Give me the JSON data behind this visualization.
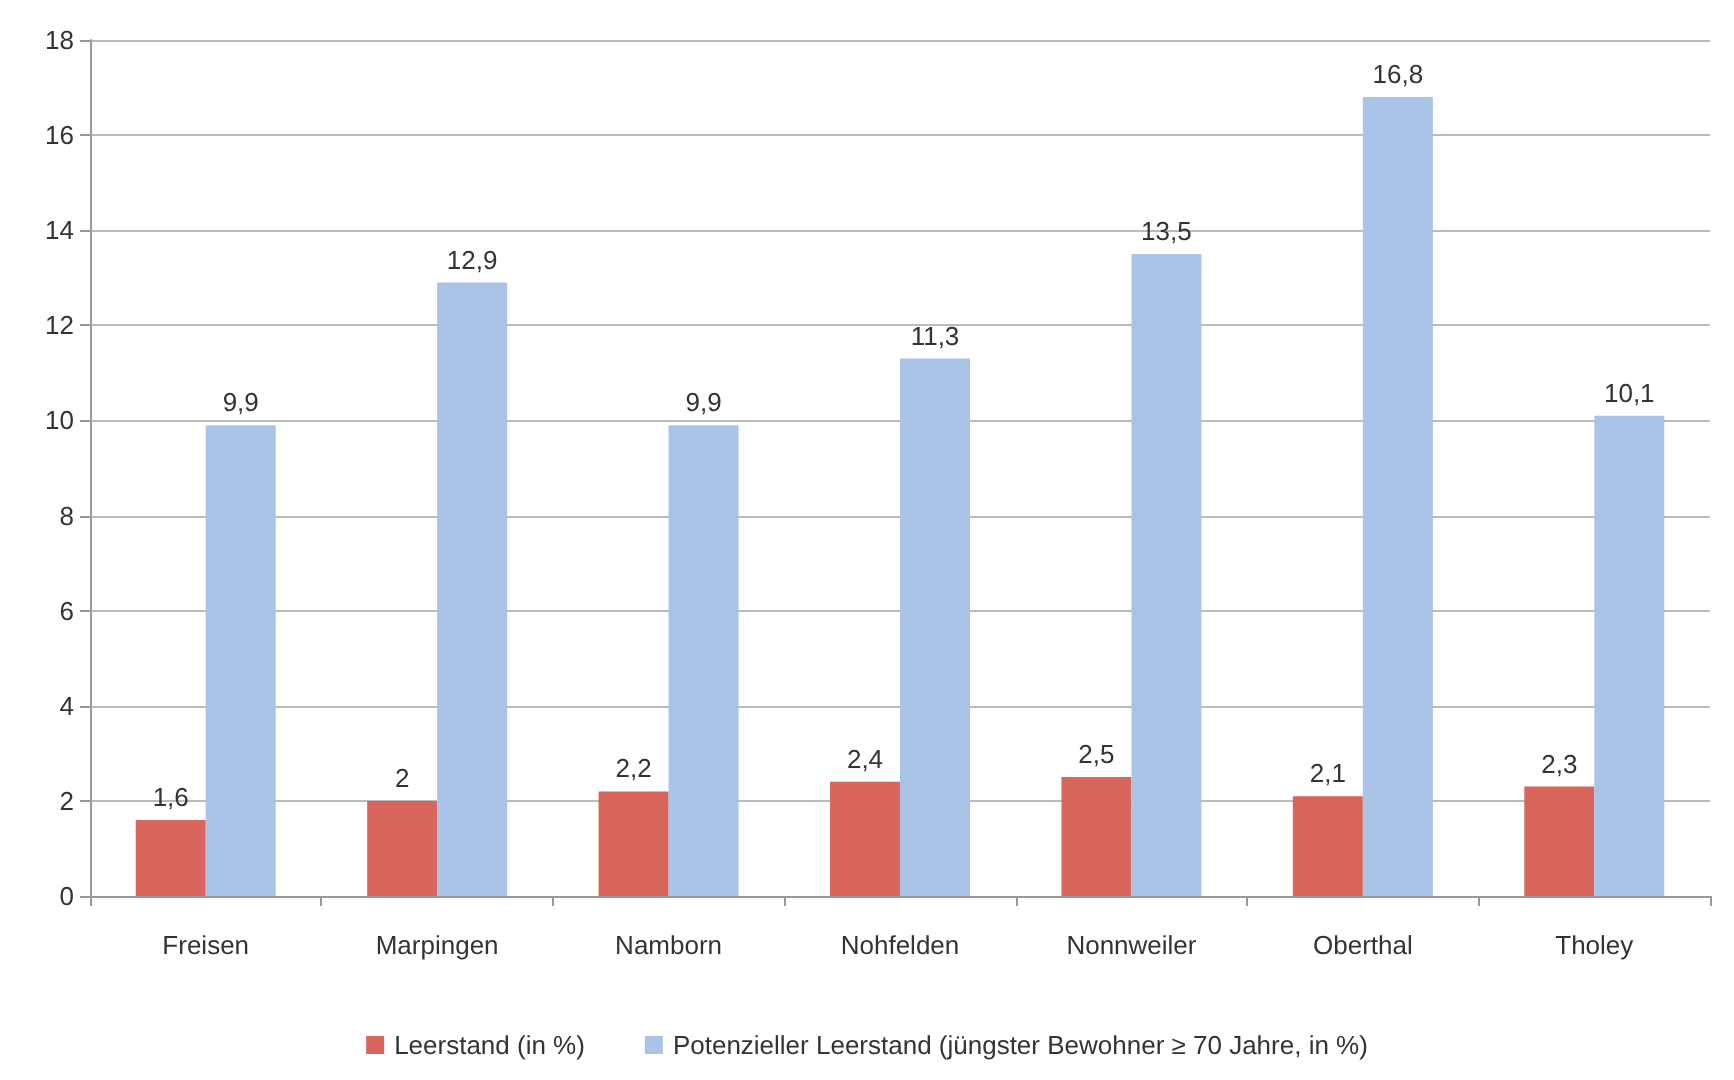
{
  "chart_data": {
    "type": "bar",
    "categories": [
      "Freisen",
      "Marpingen",
      "Namborn",
      "Nohfelden",
      "Nonnweiler",
      "Oberthal",
      "Tholey"
    ],
    "series": [
      {
        "name": "Leerstand (in %)",
        "color": "#d9665c",
        "values": [
          1.6,
          2,
          2.2,
          2.4,
          2.5,
          2.1,
          2.3
        ],
        "value_labels": [
          "1,6",
          "2",
          "2,2",
          "2,4",
          "2,5",
          "2,1",
          "2,3"
        ]
      },
      {
        "name": "Potenzieller Leerstand (jüngster Bewohner ≥ 70 Jahre, in %)",
        "color": "#a9c4e6",
        "values": [
          9.9,
          12.9,
          9.9,
          11.3,
          13.5,
          16.8,
          10.1
        ],
        "value_labels": [
          "9,9",
          "12,9",
          "9,9",
          "11,3",
          "13,5",
          "16,8",
          "10,1"
        ]
      }
    ],
    "ylim": [
      0,
      18
    ],
    "yticks": [
      0,
      2,
      4,
      6,
      8,
      10,
      12,
      14,
      16,
      18
    ],
    "grid": "y",
    "legend": "bottom"
  }
}
